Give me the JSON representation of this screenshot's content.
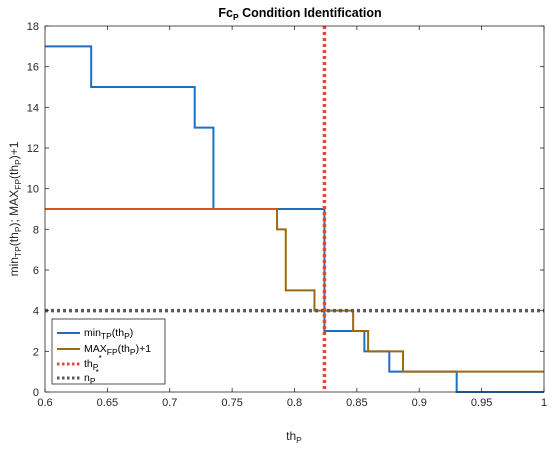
{
  "chart_data": {
    "type": "line",
    "title": "Fc",
    "title_sub": "P",
    "title_rest": " Condition Identification",
    "xlabel": "th",
    "xlabel_sub": "P",
    "ylabel_parts": [
      "min",
      "TP",
      "(th",
      "P",
      "); MAX",
      "FP",
      "(th",
      "P",
      ")+1"
    ],
    "xlim": [
      0.6,
      1.0
    ],
    "ylim": [
      0,
      18
    ],
    "x_ticks": [
      "0.6",
      "0.65",
      "0.7",
      "0.75",
      "0.8",
      "0.85",
      "0.9",
      "0.95",
      "1"
    ],
    "y_ticks": [
      "0",
      "2",
      "4",
      "6",
      "8",
      "10",
      "12",
      "14",
      "16",
      "18"
    ],
    "x_tick_values": [
      0.6,
      0.65,
      0.7,
      0.75,
      0.8,
      0.85,
      0.9,
      0.95,
      1.0
    ],
    "y_tick_values": [
      0,
      2,
      4,
      6,
      8,
      10,
      12,
      14,
      16,
      18
    ],
    "grid": false,
    "legend_position": "bottom-left",
    "series": [
      {
        "name": "min",
        "name_sub": "TP",
        "name_rest": "(th",
        "name_sub2": "P",
        "name_end": ")",
        "color": "#1f6fc0",
        "style": "step",
        "x": [
          0.6,
          0.637,
          0.637,
          0.72,
          0.72,
          0.735,
          0.735,
          0.824,
          0.824,
          0.856,
          0.856,
          0.876,
          0.876,
          0.93,
          0.93,
          1.0
        ],
        "y": [
          17,
          17,
          15,
          15,
          13,
          13,
          9,
          9,
          3,
          3,
          2,
          2,
          1,
          1,
          0,
          0
        ]
      },
      {
        "name": "MAX",
        "name_sub": "FP",
        "name_rest": "(th",
        "name_sub2": "P",
        "name_end": ")+1",
        "color": "#9b6a10",
        "style": "step",
        "x": [
          0.6,
          0.786,
          0.786,
          0.793,
          0.793,
          0.816,
          0.816,
          0.847,
          0.847,
          0.859,
          0.859,
          0.887,
          0.887,
          1.0
        ],
        "y": [
          9,
          9,
          8,
          8,
          5,
          5,
          4,
          4,
          3,
          3,
          2,
          2,
          1,
          1
        ]
      },
      {
        "name": "th",
        "name_sub": "P",
        "name_sup": "*",
        "color": "#e0483a",
        "style": "vline",
        "x": 0.824
      },
      {
        "name": "n",
        "name_sub": "P",
        "name_sup": "*",
        "color": "#5a5a5a",
        "style": "hline",
        "y": 4
      }
    ]
  }
}
